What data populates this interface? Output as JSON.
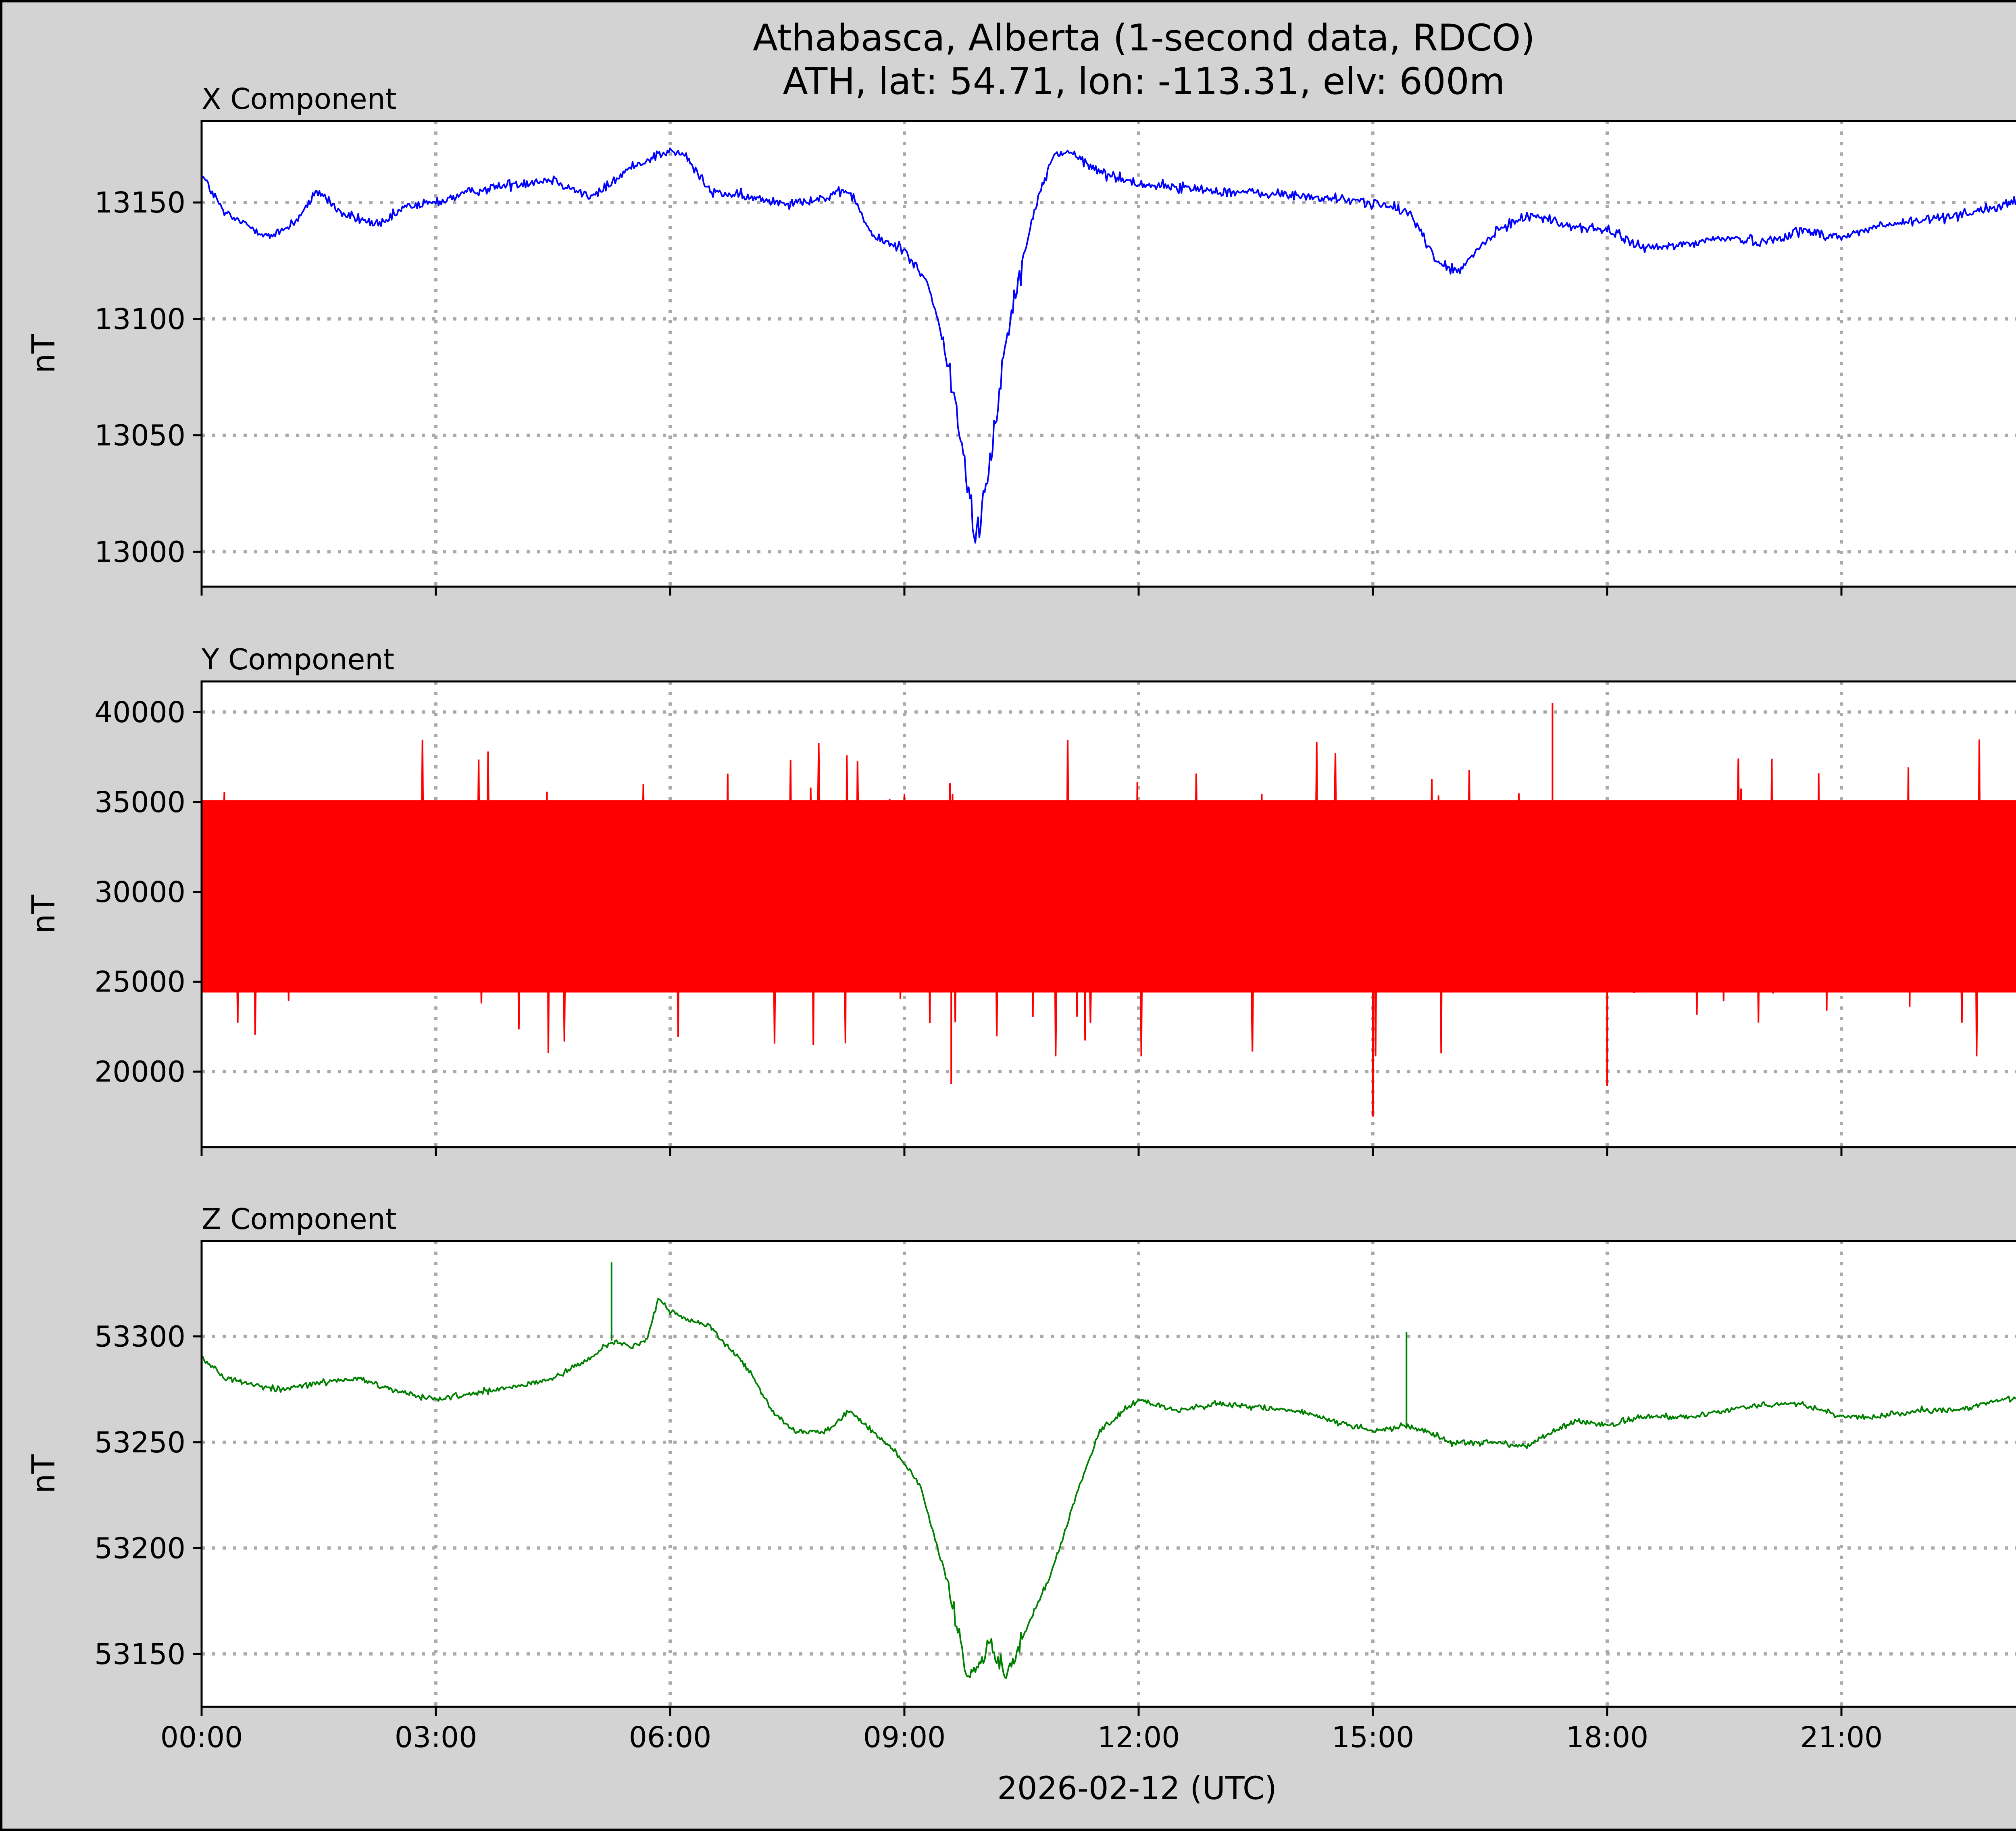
{
  "figure": {
    "title_line1": "Athabasca, Alberta (1-second data, RDCO)",
    "title_line2": "ATH, lat: 54.71, lon: -113.31, elv: 600m",
    "xlabel": "2026-02-12 (UTC)",
    "background": "#d3d3d3"
  },
  "chart_data": [
    {
      "type": "line",
      "title": "X Component",
      "ylabel": "nT",
      "color": "#0000ff",
      "xlim": [
        0,
        24
      ],
      "ylim": [
        12985,
        13185
      ],
      "yticks": [
        13000,
        13050,
        13100,
        13150
      ],
      "xticks": [
        "00:00",
        "03:00",
        "06:00",
        "09:00",
        "12:00",
        "15:00",
        "18:00",
        "21:00"
      ],
      "grid": true,
      "series": [
        {
          "name": "",
          "x": [
            0,
            0.3,
            0.6,
            0.9,
            1.2,
            1.5,
            1.8,
            2.3,
            2.6,
            3.0,
            3.5,
            4.0,
            4.5,
            5.0,
            5.5,
            5.8,
            6.0,
            6.2,
            6.5,
            7.0,
            7.5,
            8.0,
            8.3,
            8.6,
            9.0,
            9.3,
            9.5,
            9.7,
            9.85,
            9.9,
            10.0,
            10.1,
            10.3,
            10.5,
            10.7,
            10.9,
            11.1,
            11.4,
            11.6,
            12.0,
            13.0,
            14.0,
            15.0,
            15.5,
            15.8,
            16.1,
            16.4,
            16.7,
            17.0,
            17.5,
            18.0,
            18.5,
            19.0,
            19.5,
            20.0,
            20.5,
            21.0,
            21.5,
            22.0,
            22.5,
            23.0,
            23.5,
            24.0
          ],
          "y": [
            13162,
            13145,
            13140,
            13135,
            13142,
            13155,
            13145,
            13140,
            13148,
            13150,
            13155,
            13158,
            13160,
            13152,
            13165,
            13170,
            13172,
            13170,
            13155,
            13152,
            13150,
            13152,
            13155,
            13135,
            13130,
            13115,
            13090,
            13055,
            13020,
            13000,
            13020,
            13040,
            13090,
            13125,
            13150,
            13170,
            13172,
            13165,
            13162,
            13158,
            13155,
            13153,
            13150,
            13145,
            13125,
            13120,
            13132,
            13140,
            13145,
            13140,
            13138,
            13130,
            13132,
            13135,
            13133,
            13138,
            13135,
            13140,
            13142,
            13145,
            13148,
            13152,
            13142
          ]
        }
      ]
    },
    {
      "type": "line",
      "title": "Y Component",
      "ylabel": "nT",
      "color": "#ff0000",
      "xlim": [
        0,
        24
      ],
      "ylim": [
        15800,
        41700
      ],
      "yticks": [
        20000,
        25000,
        30000,
        35000,
        40000
      ],
      "xticks": [
        "00:00",
        "03:00",
        "06:00",
        "09:00",
        "12:00",
        "15:00",
        "18:00",
        "21:00"
      ],
      "grid": true,
      "series": [
        {
          "name": "",
          "mean": 29800,
          "band_low": 23500,
          "band_high": 36000,
          "min": 17500,
          "max": 40500
        }
      ]
    },
    {
      "type": "line",
      "title": "Z Component",
      "ylabel": "nT",
      "color": "#008000",
      "xlim": [
        0,
        24
      ],
      "ylim": [
        53125,
        53345
      ],
      "yticks": [
        53150,
        53200,
        53250,
        53300
      ],
      "xticks": [
        "00:00",
        "03:00",
        "06:00",
        "09:00",
        "12:00",
        "15:00",
        "18:00",
        "21:00"
      ],
      "grid": true,
      "series": [
        {
          "name": "",
          "x": [
            0,
            0.3,
            0.6,
            1.0,
            1.5,
            2.0,
            2.5,
            3.0,
            3.5,
            4.0,
            4.5,
            5.0,
            5.25,
            5.5,
            5.7,
            5.85,
            6.0,
            6.2,
            6.5,
            7.0,
            7.3,
            7.6,
            8.0,
            8.3,
            8.6,
            8.9,
            9.2,
            9.5,
            9.7,
            9.8,
            9.95,
            10.1,
            10.3,
            10.6,
            10.9,
            11.2,
            11.5,
            11.8,
            12.0,
            12.5,
            13.0,
            14.0,
            15.0,
            15.4,
            15.7,
            16.0,
            16.5,
            17.0,
            17.3,
            17.6,
            18.0,
            18.5,
            19.0,
            19.5,
            20.0,
            20.5,
            21.0,
            21.5,
            22.0,
            22.5,
            23.0,
            23.5,
            24.0
          ],
          "y": [
            53290,
            53280,
            53278,
            53275,
            53278,
            53280,
            53274,
            53270,
            53273,
            53276,
            53280,
            53290,
            53298,
            53295,
            53298,
            53318,
            53312,
            53308,
            53305,
            53285,
            53265,
            53255,
            53255,
            53265,
            53255,
            53245,
            53230,
            53190,
            53160,
            53140,
            53145,
            53155,
            53140,
            53165,
            53190,
            53225,
            53255,
            53265,
            53270,
            53265,
            53268,
            53265,
            53255,
            53258,
            53255,
            53250,
            53250,
            53248,
            53255,
            53260,
            53258,
            53262,
            53262,
            53265,
            53268,
            53268,
            53262,
            53262,
            53265,
            53265,
            53270,
            53272,
            53272
          ]
        }
      ],
      "spikes": [
        {
          "x": 5.25,
          "y": 53335
        },
        {
          "x": 15.43,
          "y": 53302
        }
      ]
    }
  ]
}
